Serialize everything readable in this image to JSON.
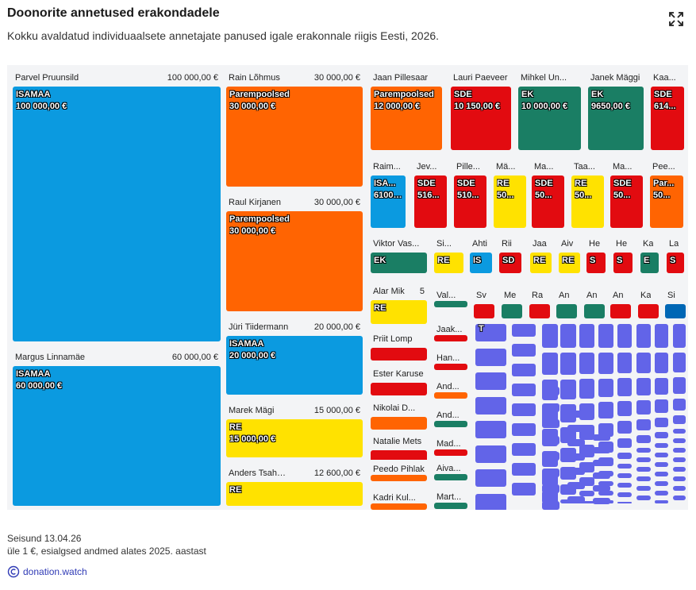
{
  "header": {
    "title": "Doonorite annetused erakondadele",
    "subtitle": "Kokku avaldatud individuaalsete annetajate panused igale erakonnale riigis Eesti, 2026."
  },
  "footer": {
    "status": "Seisund 13.04.26",
    "note": "üle 1 €, esialgsed andmed alates 2025. aastast",
    "source_label": "donation.watch"
  },
  "icons": {
    "expand": "expand-icon",
    "source": "copyright-icon"
  },
  "colors": {
    "ISAMAA": "#0b9ae0",
    "Parempoolsed": "#ff6402",
    "SDE": "#e20b10",
    "EK": "#1a7e64",
    "RE": "#ffe200",
    "E200": "#0067b5",
    "other": "#6264e8"
  },
  "chart_data": {
    "type": "treemap",
    "title": "Doonorite annetused erakondadele",
    "value_unit": "€",
    "donors": [
      {
        "name": "Parvel Pruunsild",
        "amount_label": "100 000,00 €",
        "amount": 100000,
        "party": "ISAMAA",
        "party_label": "ISAMAA",
        "block_amount": "100 000,00 €"
      },
      {
        "name": "Margus Linnamäe",
        "amount_label": "60 000,00 €",
        "amount": 60000,
        "party": "ISAMAA",
        "party_label": "ISAMAA",
        "block_amount": "60 000,00 €"
      },
      {
        "name": "Rain Lõhmus",
        "amount_label": "30 000,00 €",
        "amount": 30000,
        "party": "Parempoolsed",
        "party_label": "Parempoolsed",
        "block_amount": "30 000,00 €"
      },
      {
        "name": "Raul Kirjanen",
        "amount_label": "30 000,00 €",
        "amount": 30000,
        "party": "Parempoolsed",
        "party_label": "Parempoolsed",
        "block_amount": "30 000,00 €"
      },
      {
        "name": "Jüri Tiidermann",
        "amount_label": "20 000,00 €",
        "amount": 20000,
        "party": "ISAMAA",
        "party_label": "ISAMAA",
        "block_amount": "20 000,00 €"
      },
      {
        "name": "Marek Mägi",
        "amount_label": "15 000,00 €",
        "amount": 15000,
        "party": "RE",
        "party_label": "RE",
        "block_amount": "15 000,00 €"
      },
      {
        "name": "Anders Tsahkna",
        "amount_label": "12 600,00 €",
        "amount": 12600,
        "party": "RE",
        "party_label": "RE",
        "block_amount": ""
      },
      {
        "name": "Jaan Pillesaar",
        "amount_label": "",
        "amount": 12000,
        "party": "Parempoolsed",
        "party_label": "Parempoolsed",
        "block_amount": "12 000,00 €"
      },
      {
        "name": "Lauri Paeveer",
        "amount_label": "",
        "amount": 10150,
        "party": "SDE",
        "party_label": "SDE",
        "block_amount": "10 150,00 €"
      },
      {
        "name": "Mihkel Un...",
        "amount_label": "",
        "amount": 10000,
        "party": "EK",
        "party_label": "EK",
        "block_amount": "10 000,00 €"
      },
      {
        "name": "Janek Mäggi",
        "amount_label": "",
        "amount": 9650,
        "party": "EK",
        "party_label": "EK",
        "block_amount": "9650,00 €"
      },
      {
        "name": "Kaa...",
        "amount_label": "",
        "amount": 6140,
        "party": "SDE",
        "party_label": "SDE",
        "block_amount": "614..."
      },
      {
        "name": "Raim...",
        "amount_label": "",
        "amount": 6100,
        "party": "ISAMAA",
        "party_label": "ISA...",
        "block_amount": "6100,..."
      },
      {
        "name": "Jev...",
        "amount_label": "",
        "amount": 5160,
        "party": "SDE",
        "party_label": "SDE",
        "block_amount": "516..."
      },
      {
        "name": "Pille...",
        "amount_label": "",
        "amount": 5100,
        "party": "SDE",
        "party_label": "SDE",
        "block_amount": "510..."
      },
      {
        "name": "Mä...",
        "amount_label": "",
        "amount": 5000,
        "party": "RE",
        "party_label": "RE",
        "block_amount": "50..."
      },
      {
        "name": "Ma...",
        "amount_label": "",
        "amount": 5000,
        "party": "SDE",
        "party_label": "SDE",
        "block_amount": "50..."
      },
      {
        "name": "Taa...",
        "amount_label": "",
        "amount": 5000,
        "party": "RE",
        "party_label": "RE",
        "block_amount": "50..."
      },
      {
        "name": "Ma...",
        "amount_label": "",
        "amount": 5000,
        "party": "SDE",
        "party_label": "SDE",
        "block_amount": "50..."
      },
      {
        "name": "Pee...",
        "amount_label": "",
        "amount": 5000,
        "party": "Parempoolsed",
        "party_label": "Par...",
        "block_amount": "50..."
      },
      {
        "name": "Viktor Vas...",
        "amount_label": "",
        "party": "EK",
        "party_label": "EK",
        "block_amount": ""
      },
      {
        "name": "Si...",
        "amount_label": "",
        "party": "RE",
        "party_label": "RE",
        "block_amount": ""
      },
      {
        "name": "Ahti",
        "amount_label": "",
        "party": "ISAMAA",
        "party_label": "IS",
        "block_amount": ""
      },
      {
        "name": "Rii",
        "amount_label": "",
        "party": "SDE",
        "party_label": "SD",
        "block_amount": ""
      },
      {
        "name": "Jaa",
        "amount_label": "",
        "party": "RE",
        "party_label": "RE",
        "block_amount": ""
      },
      {
        "name": "Aiv",
        "amount_label": "",
        "party": "RE",
        "party_label": "RE",
        "block_amount": ""
      },
      {
        "name": "He",
        "amount_label": "",
        "party": "SDE",
        "party_label": "S",
        "block_amount": ""
      },
      {
        "name": "He",
        "amount_label": "",
        "party": "SDE",
        "party_label": "S",
        "block_amount": ""
      },
      {
        "name": "Ka",
        "amount_label": "",
        "party": "EK",
        "party_label": "E",
        "block_amount": ""
      },
      {
        "name": "La",
        "amount_label": "",
        "party": "SDE",
        "party_label": "S",
        "block_amount": ""
      },
      {
        "name": "Alar Mik",
        "amount_label": "5",
        "party": "RE",
        "party_label": "RE",
        "block_amount": ""
      },
      {
        "name": "Val...",
        "amount_label": "",
        "party": "EK",
        "party_label": "",
        "block_amount": ""
      },
      {
        "name": "Sv",
        "amount_label": "",
        "party": "SDE",
        "party_label": "",
        "block_amount": ""
      },
      {
        "name": "Me",
        "amount_label": "",
        "party": "EK",
        "party_label": "",
        "block_amount": ""
      },
      {
        "name": "Ra",
        "amount_label": "",
        "party": "SDE",
        "party_label": "",
        "block_amount": ""
      },
      {
        "name": "An",
        "amount_label": "",
        "party": "EK",
        "party_label": "",
        "block_amount": ""
      },
      {
        "name": "An",
        "amount_label": "",
        "party": "EK",
        "party_label": "",
        "block_amount": ""
      },
      {
        "name": "An",
        "amount_label": "",
        "party": "SDE",
        "party_label": "",
        "block_amount": ""
      },
      {
        "name": "Ka",
        "amount_label": "",
        "party": "SDE",
        "party_label": "",
        "block_amount": ""
      },
      {
        "name": "Si",
        "amount_label": "",
        "party": "E200",
        "party_label": "",
        "block_amount": ""
      },
      {
        "name": "Priit Lomp",
        "amount_label": "",
        "party": "SDE",
        "party_label": "",
        "block_amount": ""
      },
      {
        "name": "Jaak...",
        "amount_label": "",
        "party": "SDE",
        "party_label": "",
        "block_amount": ""
      },
      {
        "name": "Ester Karuse",
        "amount_label": "",
        "party": "SDE",
        "party_label": "",
        "block_amount": ""
      },
      {
        "name": "Han...",
        "amount_label": "",
        "party": "SDE",
        "party_label": "",
        "block_amount": ""
      },
      {
        "name": "And...",
        "amount_label": "",
        "party": "Parempoolsed",
        "party_label": "",
        "block_amount": ""
      },
      {
        "name": "Nikolai D...",
        "amount_label": "",
        "party": "Parempoolsed",
        "party_label": "",
        "block_amount": ""
      },
      {
        "name": "And...",
        "amount_label": "",
        "party": "EK",
        "party_label": "",
        "block_amount": ""
      },
      {
        "name": "Natalie Mets",
        "amount_label": "",
        "party": "SDE",
        "party_label": "",
        "block_amount": ""
      },
      {
        "name": "Mad...",
        "amount_label": "",
        "party": "SDE",
        "party_label": "",
        "block_amount": ""
      },
      {
        "name": "Peedo Pihlak",
        "amount_label": "",
        "party": "Parempoolsed",
        "party_label": "",
        "block_amount": ""
      },
      {
        "name": "Aiva...",
        "amount_label": "",
        "party": "EK",
        "party_label": "",
        "block_amount": ""
      },
      {
        "name": "Kadri Kul...",
        "amount_label": "",
        "party": "Parempoolsed",
        "party_label": "",
        "block_amount": ""
      },
      {
        "name": "Mart...",
        "amount_label": "",
        "party": "EK",
        "party_label": "",
        "block_amount": ""
      }
    ],
    "other_marker": "T"
  }
}
